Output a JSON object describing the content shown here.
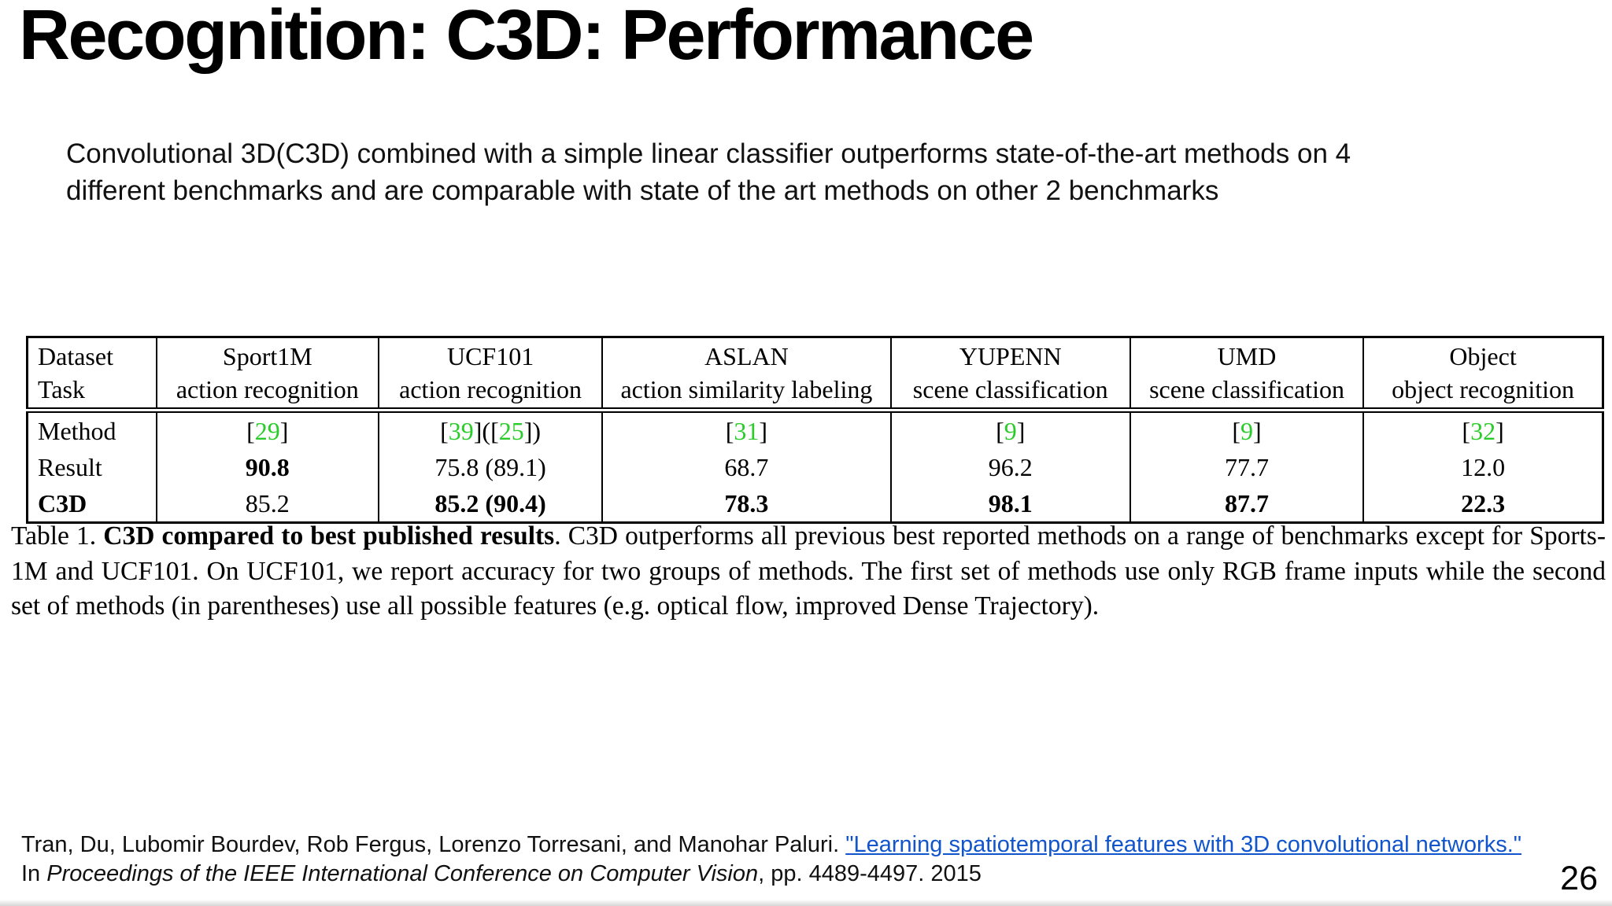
{
  "title": "Recognition: C3D: Performance",
  "body": {
    "line1": "Convolutional 3D(C3D) combined with a simple linear classifier outperforms state-of-the-art methods on 4",
    "line2": "different benchmarks and are comparable with state of the art methods on other 2 benchmarks"
  },
  "colors": {
    "citation_green": "#2BCB2B",
    "link_blue": "#1155CC"
  },
  "table": {
    "col_widths_pct": [
      8.2,
      14.1,
      14.2,
      18.3,
      15.2,
      14.8,
      15.2
    ],
    "header": {
      "label_line1": "Dataset",
      "label_line2": "Task",
      "columns": [
        {
          "name": "Sport1M",
          "task": "action recognition"
        },
        {
          "name": "UCF101",
          "task": "action recognition"
        },
        {
          "name": "ASLAN",
          "task": "action similarity labeling"
        },
        {
          "name": "YUPENN",
          "task": "scene classification"
        },
        {
          "name": "UMD",
          "task": "scene classification"
        },
        {
          "name": "Object",
          "task": "object recognition"
        }
      ]
    },
    "rows": [
      {
        "label": "Method",
        "label_bold": false,
        "type": "cite",
        "cells": [
          "[29]",
          "[39]([25])",
          "[31]",
          "[9]",
          "[9]",
          "[32]"
        ],
        "cell_bold": [
          false,
          false,
          false,
          false,
          false,
          false
        ]
      },
      {
        "label": "Result",
        "label_bold": false,
        "type": "value",
        "cells": [
          "90.8",
          "75.8 (89.1)",
          "68.7",
          "96.2",
          "77.7",
          "12.0"
        ],
        "cell_bold": [
          true,
          false,
          false,
          false,
          false,
          false
        ]
      },
      {
        "label": "C3D",
        "label_bold": true,
        "type": "value",
        "cells": [
          "85.2",
          "85.2 (90.4)",
          "78.3",
          "98.1",
          "87.7",
          "22.3"
        ],
        "cell_bold": [
          false,
          true,
          true,
          true,
          true,
          true
        ]
      }
    ]
  },
  "caption": {
    "prefix": "Table 1. ",
    "bold": "C3D compared to best published results",
    "rest": ". C3D outperforms all previous best reported methods on a range of benchmarks except for Sports-1M and UCF101. On UCF101, we report accuracy for two groups of methods. The first set of methods use only RGB frame inputs while the second set of methods (in parentheses) use all possible features (e.g. optical flow, improved Dense Trajectory)."
  },
  "footer": {
    "authors": "Tran, Du, Lubomir Bourdev, Rob Fergus, Lorenzo Torresani, and Manohar Paluri. ",
    "link_text": "\"Learning spatiotemporal features with 3D convolutional networks.\"",
    "line2_prefix": "In ",
    "line2_italic": "Proceedings of the IEEE International Conference on Computer Vision",
    "line2_suffix": ", pp. 4489-4497. 2015"
  },
  "page_number": "26"
}
